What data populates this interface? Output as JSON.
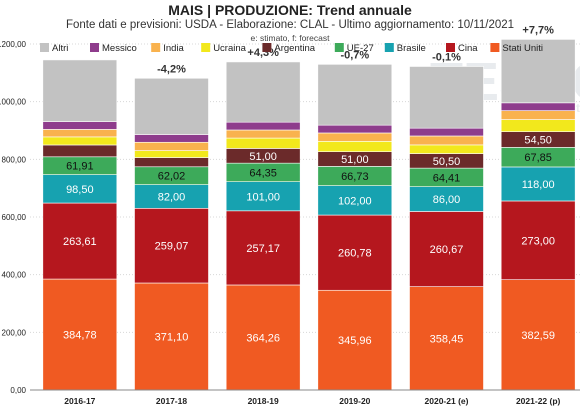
{
  "chart_data": {
    "type": "bar",
    "stacked": true,
    "title": "MAIS | PRODUZIONE: Trend annuale",
    "subtitle": "Fonte dati e previsioni: USDA - Elaborazione: CLAL - Ultimo aggiornamento: 10/11/2021",
    "note": "e: stimato, f: forecast",
    "xlabel": "",
    "ylabel": "",
    "ylim": [
      0,
      1200
    ],
    "yticks": [
      "0,00",
      "200,00",
      "400,00",
      "600,00",
      "800,00",
      "1.000,00",
      "1.200,00"
    ],
    "ytick_values": [
      0,
      200,
      400,
      600,
      800,
      1000,
      1200
    ],
    "grid": true,
    "legend_position": "top",
    "watermark": {
      "main": "TESEO",
      "sub": "by CLAL.it"
    },
    "categories": [
      "2016-17",
      "2017-18",
      "2018-19",
      "2019-20",
      "2020-21 (e)",
      "2021-22 (p)"
    ],
    "change_labels": [
      "",
      "-4,2%",
      "+4,3%",
      "-0,7%",
      "-0,1%",
      "+7,7%"
    ],
    "series": [
      {
        "name": "Stati Uniti",
        "color": "#f05a22",
        "values": [
          384.78,
          371.1,
          364.26,
          345.96,
          358.45,
          382.59
        ],
        "labels": [
          "384,78",
          "371,10",
          "364,26",
          "345,96",
          "358,45",
          "382,59"
        ]
      },
      {
        "name": "Cina",
        "color": "#b5171e",
        "values": [
          263.61,
          259.07,
          257.17,
          260.78,
          260.67,
          273.0
        ],
        "labels": [
          "263,61",
          "259,07",
          "257,17",
          "260,78",
          "260,67",
          "273,00"
        ]
      },
      {
        "name": "Brasile",
        "color": "#17a2b0",
        "values": [
          98.5,
          82.0,
          101.0,
          102.0,
          86.0,
          118.0
        ],
        "labels": [
          "98,50",
          "82,00",
          "101,00",
          "102,00",
          "86,00",
          "118,00"
        ]
      },
      {
        "name": "UE-27",
        "color": "#3daa5a",
        "values": [
          61.91,
          62.02,
          64.35,
          66.73,
          64.41,
          67.85
        ],
        "labels": [
          "61,91",
          "62,02",
          "64,35",
          "66,73",
          "64,41",
          "67,85"
        ]
      },
      {
        "name": "Argentina",
        "color": "#6b2a2a",
        "values": [
          41,
          32,
          51.0,
          51.0,
          50.5,
          54.5
        ],
        "labels": [
          "",
          "",
          "51,00",
          "51,00",
          "50,50",
          "54,50"
        ]
      },
      {
        "name": "Ucraina",
        "color": "#f2e81c",
        "values": [
          28,
          24,
          36,
          36,
          30,
          42
        ],
        "labels": [
          "",
          "",
          "",
          "",
          "",
          ""
        ]
      },
      {
        "name": "India",
        "color": "#f9b24e",
        "values": [
          26,
          29,
          28,
          29,
          31,
          31
        ],
        "labels": [
          "",
          "",
          "",
          "",
          "",
          ""
        ]
      },
      {
        "name": "Messico",
        "color": "#8e3c8c",
        "values": [
          27,
          27,
          27,
          27,
          27,
          27
        ],
        "labels": [
          "",
          "",
          "",
          "",
          "",
          ""
        ]
      },
      {
        "name": "Altri",
        "color": "#c2c2c2",
        "values": [
          214,
          195,
          209,
          211,
          214,
          220
        ],
        "labels": [
          "",
          "",
          "",
          "",
          "",
          ""
        ]
      }
    ],
    "legend_order": [
      "Altri",
      "Messico",
      "India",
      "Ucraina",
      "Argentina",
      "UE-27",
      "Brasile",
      "Cina",
      "Stati Uniti"
    ]
  }
}
